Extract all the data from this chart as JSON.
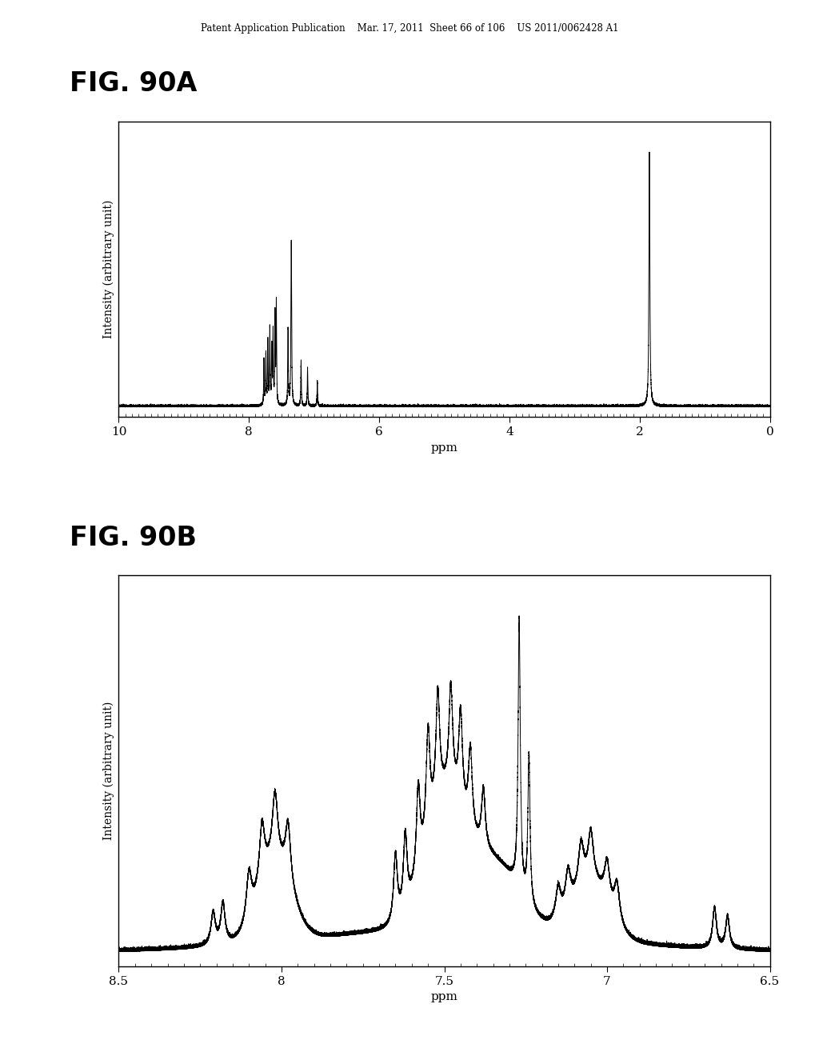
{
  "header_text": "Patent Application Publication    Mar. 17, 2011  Sheet 66 of 106    US 2011/0062428 A1",
  "fig_a_title": "FIG. 90A",
  "fig_b_title": "FIG. 90B",
  "xlabel": "ppm",
  "ylabel": "Intensity (arbitrary unit)",
  "background_color": "#ffffff",
  "line_color": "#000000",
  "fig_a_xticks": [
    10,
    8,
    6,
    4,
    2,
    0
  ],
  "fig_a_xticklabels": [
    "10",
    "8",
    "6",
    "4",
    "2",
    "0"
  ],
  "fig_b_xticks": [
    8.5,
    8.0,
    7.5,
    7.0,
    6.5
  ],
  "fig_b_xticklabels": [
    "8.5",
    "8",
    "7.5",
    "7",
    "6.5"
  ]
}
